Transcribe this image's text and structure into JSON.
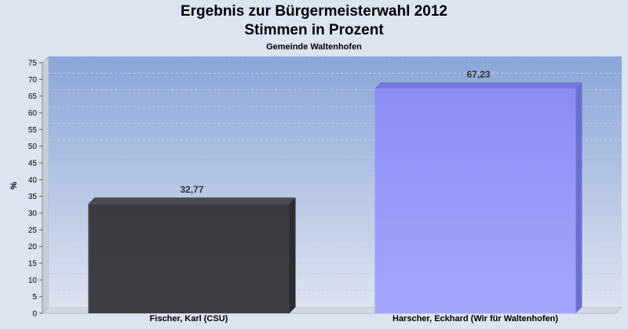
{
  "chart_data": {
    "type": "bar",
    "title": "Ergebnis zur Bürgermeisterwahl 2012",
    "title_line2": "Stimmen in Prozent",
    "subtitle": "Gemeinde Waltenhofen",
    "ylabel": "%",
    "ylim": [
      0,
      75
    ],
    "ytick_step": 5,
    "grid": true,
    "categories": [
      "Fischer, Karl (CSU)",
      "Harscher, Eckhard (Wir für Waltenhofen)"
    ],
    "values": [
      32.77,
      67.23
    ],
    "value_labels": [
      "32,77",
      "67,23"
    ],
    "colors": [
      "#3a3b40",
      "#8b8ff5"
    ]
  }
}
